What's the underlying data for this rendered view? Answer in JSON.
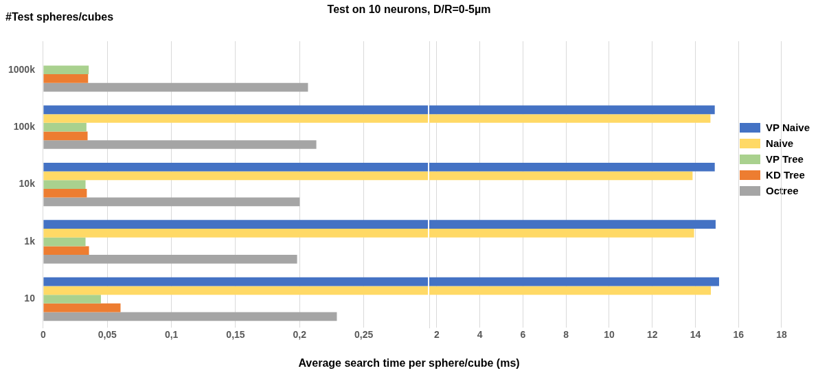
{
  "chart_data": [
    {
      "type": "bar",
      "orientation": "horizontal",
      "title": "Test on 10 neurons, D/R=0-5µm",
      "xlabel": "Average search time per sphere/cube (ms)",
      "ylabel": "#Test spheres/cubes",
      "categories": [
        "1000k",
        "100k",
        "10k",
        "1k",
        "10"
      ],
      "series": [
        {
          "name": "VP Naive",
          "color": "#4472c4",
          "values": [
            null,
            0.3,
            0.3,
            0.3,
            0.3
          ]
        },
        {
          "name": "Naive",
          "color": "#ffd966",
          "values": [
            null,
            0.3,
            0.3,
            0.3,
            0.3
          ]
        },
        {
          "name": "VP Tree",
          "color": "#a9d18e",
          "values": [
            0.0355,
            0.0337,
            0.033,
            0.033,
            0.045
          ]
        },
        {
          "name": "KD Tree",
          "color": "#ed7d31",
          "values": [
            0.035,
            0.0346,
            0.034,
            0.0357,
            0.0603
          ]
        },
        {
          "name": "Octree",
          "color": "#a5a5a5",
          "values": [
            0.2065,
            0.213,
            0.2,
            0.198,
            0.229
          ]
        }
      ],
      "xlim": [
        0,
        0.3
      ],
      "xticks": [
        0,
        {
          "value": 0.05,
          "label": "0,05"
        },
        {
          "value": 0.1,
          "label": "0,1"
        },
        {
          "value": 0.15,
          "label": "0,15"
        },
        {
          "value": 0.2,
          "label": "0,2"
        },
        {
          "value": 0.25,
          "label": "0,25"
        }
      ],
      "grid": "x",
      "legend": "right"
    },
    {
      "type": "bar",
      "orientation": "horizontal",
      "categories": [
        null,
        null,
        null,
        null,
        null
      ],
      "series": [
        {
          "color": "#4472c4",
          "values": [
            null,
            14.9,
            14.9,
            14.94,
            15.1
          ]
        },
        {
          "color": "#ffd966",
          "values": [
            null,
            14.7,
            13.87,
            13.94,
            14.72
          ]
        },
        {
          "color": "#a9d18e",
          "values": [
            null,
            null,
            null,
            null,
            null
          ]
        },
        {
          "color": "#ed7d31",
          "values": [
            null,
            null,
            null,
            null,
            null
          ]
        },
        {
          "color": "#a5a5a5",
          "values": [
            null,
            null,
            null,
            null,
            null
          ]
        }
      ],
      "xlim": [
        1.65,
        19.5
      ],
      "xticks": [
        2,
        4,
        6,
        8,
        10,
        12,
        14,
        16,
        18
      ],
      "grid": "x",
      "tick_labels": "x"
    }
  ]
}
